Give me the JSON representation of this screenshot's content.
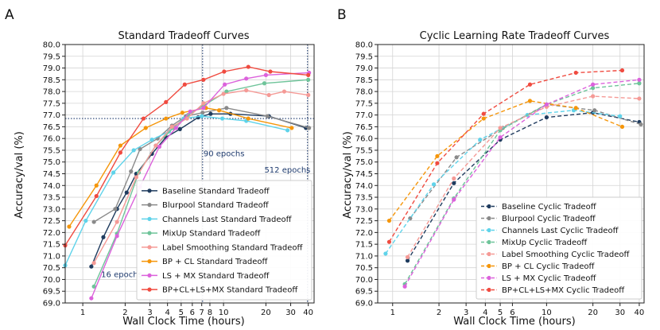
{
  "chart_data": [
    {
      "panel_label": "A",
      "type": "line",
      "title": "Standard Tradeoff Curves",
      "xlabel": "Wall Clock Time (hours)",
      "ylabel": "Accuracy/val (%)",
      "xscale": "log",
      "xlim": [
        0.75,
        44
      ],
      "ylim": [
        69.0,
        80.0
      ],
      "xticks": [
        1,
        2,
        3,
        4,
        5,
        6,
        7,
        8,
        10,
        20,
        30,
        40
      ],
      "xtick_labels": [
        "1",
        "2",
        "3",
        "4",
        "5",
        "6",
        "7",
        "8",
        "10",
        "20",
        "30",
        "40"
      ],
      "yticks": [
        69.0,
        69.5,
        70.0,
        70.5,
        71.0,
        71.5,
        72.0,
        72.5,
        73.0,
        73.5,
        74.0,
        74.5,
        75.0,
        75.5,
        76.0,
        76.5,
        77.0,
        77.5,
        78.0,
        78.5,
        79.0,
        79.5,
        80.0
      ],
      "ytick_labels": [
        "69.0",
        "69.5",
        "70.0",
        "70.5",
        "71.0",
        "71.5",
        "72.0",
        "72.5",
        "73.0",
        "73.5",
        "74.0",
        "74.5",
        "75.0",
        "75.5",
        "76.0",
        "76.5",
        "77.0",
        "77.5",
        "78.0",
        "78.5",
        "79.0",
        "79.5",
        "80.0"
      ],
      "grid": true,
      "linestyle": "solid",
      "legend_position": "bottom-right",
      "reference_lines": {
        "horizontal": [
          76.85
        ],
        "vertical": [
          7.1,
          39.5
        ]
      },
      "annotations": [
        {
          "text": "16 epochs",
          "x": 1.35,
          "y": 70.1
        },
        {
          "text": "90 epochs",
          "x": 7.2,
          "y": 75.25
        },
        {
          "text": "512 epochs",
          "x": 19.5,
          "y": 74.55
        }
      ],
      "series": [
        {
          "name": "Baseline Standard Tradeoff",
          "color": "#1f3b5e",
          "x": [
            1.15,
            1.4,
            1.75,
            2.05,
            2.4,
            3.1,
            3.9,
            4.9,
            6.6,
            8.1,
            11.2,
            21.0,
            38.5
          ],
          "y": [
            70.55,
            71.8,
            73.0,
            73.7,
            74.5,
            75.35,
            76.05,
            76.4,
            76.9,
            77.05,
            77.05,
            76.95,
            76.45
          ]
        },
        {
          "name": "Blurpool Standard Tradeoff",
          "color": "#8a8a8a",
          "x": [
            1.2,
            1.7,
            2.2,
            2.55,
            3.4,
            4.3,
            5.4,
            7.1,
            10.5,
            20.5,
            40.5
          ],
          "y": [
            72.45,
            73.0,
            74.6,
            75.55,
            76.0,
            76.55,
            76.95,
            77.1,
            77.3,
            76.95,
            76.45
          ]
        },
        {
          "name": "Channels Last Standard Tradeoff",
          "color": "#5fd3ea",
          "x": [
            0.75,
            1.05,
            1.65,
            2.3,
            3.1,
            4.1,
            5.2,
            7.0,
            9.8,
            14.5,
            28.5
          ],
          "y": [
            70.6,
            72.5,
            74.55,
            75.5,
            75.95,
            76.3,
            76.85,
            76.95,
            76.85,
            76.75,
            76.35
          ]
        },
        {
          "name": "MixUp Standard Tradeoff",
          "color": "#6fc49a",
          "x": [
            1.2,
            1.75,
            2.5,
            3.3,
            4.4,
            5.6,
            7.2,
            10.5,
            19.5,
            40.0
          ],
          "y": [
            69.7,
            71.95,
            74.55,
            75.7,
            76.45,
            77.0,
            77.4,
            78.0,
            78.35,
            78.5
          ]
        },
        {
          "name": "Label Smoothing Standard Tradeoff",
          "color": "#f59a96",
          "x": [
            1.2,
            1.75,
            2.4,
            3.3,
            4.3,
            5.5,
            7.2,
            10.0,
            14.5,
            21.0,
            27.0,
            40.0
          ],
          "y": [
            70.7,
            72.45,
            74.35,
            75.7,
            76.5,
            76.85,
            77.5,
            77.9,
            78.05,
            77.85,
            78.0,
            77.85
          ]
        },
        {
          "name": "BP + CL Standard Tradeoff",
          "color": "#f5960a",
          "x": [
            0.8,
            1.25,
            1.85,
            2.8,
            3.9,
            5.1,
            7.5,
            9.3,
            15.0,
            30.5
          ],
          "y": [
            72.25,
            74.0,
            75.7,
            76.45,
            76.85,
            77.1,
            77.3,
            77.2,
            76.85,
            76.45
          ]
        },
        {
          "name": "LS + MX Standard Tradeoff",
          "color": "#dc62dc",
          "x": [
            1.15,
            1.75,
            2.55,
            3.5,
            4.6,
            5.8,
            7.2,
            10.2,
            14.5,
            20.0,
            40.5
          ],
          "y": [
            69.2,
            71.85,
            73.95,
            75.65,
            76.45,
            77.15,
            77.3,
            78.3,
            78.55,
            78.7,
            78.8
          ]
        },
        {
          "name": "BP+CL+LS+MX Standard Tradeoff",
          "color": "#f04b40",
          "x": [
            0.75,
            1.25,
            1.85,
            2.7,
            3.9,
            5.3,
            7.2,
            10.1,
            15.0,
            21.5,
            40.0
          ],
          "y": [
            71.45,
            73.55,
            75.4,
            76.85,
            77.55,
            78.3,
            78.5,
            78.85,
            79.05,
            78.85,
            78.7
          ]
        }
      ]
    },
    {
      "panel_label": "B",
      "type": "line",
      "title": "Cyclic Learning Rate Tradeoff Curves",
      "xlabel": "Wall Clock Time (hours)",
      "ylabel": "Accuracy/val (%)",
      "xscale": "log",
      "xlim": [
        0.8,
        43
      ],
      "ylim": [
        69.0,
        80.0
      ],
      "xticks": [
        1,
        2,
        3,
        4,
        5,
        6,
        10,
        20,
        30,
        40
      ],
      "xtick_labels": [
        "1",
        "2",
        "3",
        "4",
        "5",
        "6",
        "10",
        "20",
        "30",
        "40"
      ],
      "yticks": [
        69.0,
        69.5,
        70.0,
        70.5,
        71.0,
        71.5,
        72.0,
        72.5,
        73.0,
        73.5,
        74.0,
        74.5,
        75.0,
        75.5,
        76.0,
        76.5,
        77.0,
        77.5,
        78.0,
        78.5,
        79.0,
        79.5,
        80.0
      ],
      "ytick_labels": [
        "69.0",
        "69.5",
        "70.0",
        "70.5",
        "71.0",
        "71.5",
        "72.0",
        "72.5",
        "73.0",
        "73.5",
        "74.0",
        "74.5",
        "75.0",
        "75.5",
        "76.0",
        "76.5",
        "77.0",
        "77.5",
        "78.0",
        "78.5",
        "79.0",
        "79.5",
        "80.0"
      ],
      "grid": true,
      "linestyle": "dashed",
      "legend_position": "bottom-right",
      "series": [
        {
          "name": "Baseline Cyclic Tradeoff",
          "color": "#1f3b5e",
          "x": [
            1.25,
            2.5,
            5.0,
            10.0,
            20.0,
            40.0
          ],
          "y": [
            70.8,
            74.1,
            75.95,
            76.9,
            77.1,
            76.7
          ]
        },
        {
          "name": "Blurpool Cyclic Tradeoff",
          "color": "#8a8a8a",
          "x": [
            1.3,
            2.6,
            5.2,
            10.0,
            20.5,
            41.0
          ],
          "y": [
            72.6,
            75.2,
            76.45,
            77.45,
            77.2,
            76.6
          ]
        },
        {
          "name": "Channels Last Cyclic Tradeoff",
          "color": "#5fd3ea",
          "x": [
            0.9,
            1.85,
            3.7,
            7.5,
            15.0,
            30.0
          ],
          "y": [
            71.1,
            74.05,
            75.95,
            77.0,
            77.2,
            76.95
          ]
        },
        {
          "name": "MixUp Cyclic Tradeoff",
          "color": "#6fc49a",
          "x": [
            1.2,
            2.5,
            5.0,
            10.0,
            20.0,
            40.0
          ],
          "y": [
            69.8,
            73.45,
            76.35,
            77.45,
            78.15,
            78.35
          ]
        },
        {
          "name": "Label Smoothing Cyclic Tradeoff",
          "color": "#f59a96",
          "x": [
            1.25,
            2.5,
            5.0,
            10.0,
            20.0,
            40.0
          ],
          "y": [
            70.95,
            74.3,
            76.45,
            77.35,
            77.8,
            77.7
          ]
        },
        {
          "name": "BP + CL Cyclic Tradeoff",
          "color": "#f5960a",
          "x": [
            0.95,
            1.95,
            3.9,
            7.8,
            15.5,
            31.0
          ],
          "y": [
            72.5,
            75.25,
            76.85,
            77.6,
            77.3,
            76.5
          ]
        },
        {
          "name": "LS + MX Cyclic Tradeoff",
          "color": "#dc62dc",
          "x": [
            1.2,
            2.5,
            5.0,
            10.0,
            20.0,
            40.0
          ],
          "y": [
            69.7,
            73.4,
            76.05,
            77.45,
            78.3,
            78.5
          ]
        },
        {
          "name": "BP+CL+LS+MX Cyclic Tradeoff",
          "color": "#f04b40",
          "x": [
            0.95,
            1.95,
            3.9,
            7.8,
            15.5,
            31.0
          ],
          "y": [
            71.6,
            74.95,
            77.05,
            78.3,
            78.8,
            78.9
          ]
        }
      ]
    }
  ]
}
